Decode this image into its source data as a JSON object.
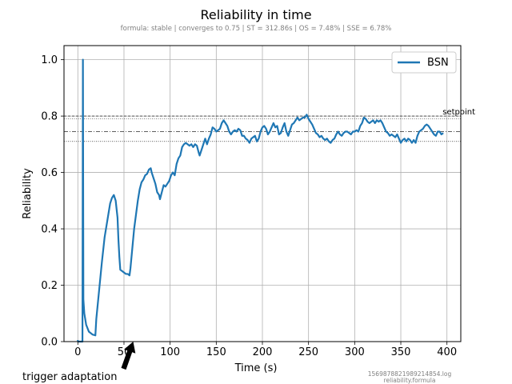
{
  "chart_data": {
    "type": "line",
    "title": "Reliability in time",
    "subtitle": "formula: stable | converges to 0.75 | ST = 312.86s | OS = 7.48% | SSE = 6.78%",
    "xlabel": "Time (s)",
    "ylabel": "Reliability",
    "xlim": [
      -15,
      415
    ],
    "ylim": [
      0.0,
      1.05
    ],
    "x_ticks": [
      0,
      50,
      100,
      150,
      200,
      250,
      300,
      350,
      400
    ],
    "y_ticks": [
      0.0,
      0.2,
      0.4,
      0.6,
      0.8,
      1.0
    ],
    "x_tick_labels": [
      "0",
      "50",
      "100",
      "150",
      "200",
      "250",
      "300",
      "350",
      "400"
    ],
    "y_tick_labels": [
      "0.0",
      "0.2",
      "0.4",
      "0.6",
      "0.8",
      "1.0"
    ],
    "grid": true,
    "legend_position": "top-right",
    "series": [
      {
        "name": "BSN",
        "color": "#1f77b4",
        "points": [
          [
            0,
            0.0
          ],
          [
            5,
            0.0
          ],
          [
            5.5,
            1.0
          ],
          [
            6,
            0.15
          ],
          [
            7,
            0.1
          ],
          [
            9,
            0.06
          ],
          [
            12,
            0.035
          ],
          [
            16,
            0.025
          ],
          [
            19,
            0.022
          ],
          [
            20,
            0.08
          ],
          [
            23,
            0.18
          ],
          [
            26,
            0.28
          ],
          [
            29,
            0.37
          ],
          [
            32,
            0.43
          ],
          [
            35,
            0.49
          ],
          [
            37,
            0.51
          ],
          [
            39,
            0.52
          ],
          [
            41,
            0.5
          ],
          [
            43,
            0.44
          ],
          [
            44,
            0.36
          ],
          [
            45,
            0.3
          ],
          [
            46,
            0.255
          ],
          [
            48,
            0.25
          ],
          [
            50,
            0.245
          ],
          [
            52,
            0.24
          ],
          [
            54,
            0.24
          ],
          [
            56,
            0.235
          ],
          [
            57,
            0.26
          ],
          [
            59,
            0.33
          ],
          [
            61,
            0.4
          ],
          [
            63,
            0.45
          ],
          [
            65,
            0.5
          ],
          [
            67,
            0.54
          ],
          [
            69,
            0.565
          ],
          [
            71,
            0.575
          ],
          [
            73,
            0.59
          ],
          [
            75,
            0.595
          ],
          [
            77,
            0.61
          ],
          [
            79,
            0.615
          ],
          [
            80,
            0.6
          ],
          [
            82,
            0.58
          ],
          [
            84,
            0.56
          ],
          [
            86,
            0.53
          ],
          [
            88,
            0.52
          ],
          [
            89,
            0.505
          ],
          [
            91,
            0.53
          ],
          [
            93,
            0.555
          ],
          [
            95,
            0.55
          ],
          [
            97,
            0.56
          ],
          [
            99,
            0.57
          ],
          [
            101,
            0.59
          ],
          [
            103,
            0.6
          ],
          [
            105,
            0.59
          ],
          [
            107,
            0.63
          ],
          [
            109,
            0.65
          ],
          [
            111,
            0.66
          ],
          [
            113,
            0.69
          ],
          [
            115,
            0.7
          ],
          [
            117,
            0.705
          ],
          [
            119,
            0.7
          ],
          [
            121,
            0.695
          ],
          [
            123,
            0.7
          ],
          [
            125,
            0.69
          ],
          [
            127,
            0.7
          ],
          [
            129,
            0.695
          ],
          [
            131,
            0.67
          ],
          [
            132,
            0.66
          ],
          [
            134,
            0.68
          ],
          [
            136,
            0.7
          ],
          [
            138,
            0.72
          ],
          [
            140,
            0.7
          ],
          [
            142,
            0.72
          ],
          [
            144,
            0.735
          ],
          [
            146,
            0.76
          ],
          [
            148,
            0.755
          ],
          [
            150,
            0.745
          ],
          [
            152,
            0.75
          ],
          [
            154,
            0.755
          ],
          [
            156,
            0.775
          ],
          [
            158,
            0.785
          ],
          [
            160,
            0.775
          ],
          [
            162,
            0.765
          ],
          [
            164,
            0.745
          ],
          [
            166,
            0.735
          ],
          [
            168,
            0.745
          ],
          [
            170,
            0.75
          ],
          [
            172,
            0.745
          ],
          [
            174,
            0.755
          ],
          [
            176,
            0.75
          ],
          [
            178,
            0.73
          ],
          [
            180,
            0.73
          ],
          [
            182,
            0.72
          ],
          [
            184,
            0.715
          ],
          [
            186,
            0.705
          ],
          [
            188,
            0.72
          ],
          [
            190,
            0.725
          ],
          [
            192,
            0.73
          ],
          [
            194,
            0.71
          ],
          [
            196,
            0.72
          ],
          [
            198,
            0.745
          ],
          [
            200,
            0.76
          ],
          [
            202,
            0.765
          ],
          [
            204,
            0.755
          ],
          [
            206,
            0.735
          ],
          [
            208,
            0.745
          ],
          [
            210,
            0.76
          ],
          [
            212,
            0.775
          ],
          [
            214,
            0.76
          ],
          [
            216,
            0.765
          ],
          [
            218,
            0.735
          ],
          [
            220,
            0.74
          ],
          [
            222,
            0.76
          ],
          [
            224,
            0.775
          ],
          [
            226,
            0.745
          ],
          [
            228,
            0.73
          ],
          [
            230,
            0.75
          ],
          [
            232,
            0.77
          ],
          [
            234,
            0.775
          ],
          [
            236,
            0.785
          ],
          [
            238,
            0.795
          ],
          [
            240,
            0.785
          ],
          [
            242,
            0.79
          ],
          [
            244,
            0.795
          ],
          [
            246,
            0.795
          ],
          [
            248,
            0.805
          ],
          [
            250,
            0.79
          ],
          [
            252,
            0.78
          ],
          [
            254,
            0.77
          ],
          [
            256,
            0.755
          ],
          [
            258,
            0.74
          ],
          [
            260,
            0.735
          ],
          [
            262,
            0.725
          ],
          [
            264,
            0.73
          ],
          [
            266,
            0.72
          ],
          [
            268,
            0.715
          ],
          [
            270,
            0.72
          ],
          [
            272,
            0.71
          ],
          [
            274,
            0.705
          ],
          [
            276,
            0.715
          ],
          [
            278,
            0.72
          ],
          [
            280,
            0.735
          ],
          [
            282,
            0.745
          ],
          [
            284,
            0.735
          ],
          [
            286,
            0.73
          ],
          [
            288,
            0.74
          ],
          [
            290,
            0.745
          ],
          [
            292,
            0.745
          ],
          [
            294,
            0.74
          ],
          [
            296,
            0.735
          ],
          [
            298,
            0.745
          ],
          [
            300,
            0.745
          ],
          [
            302,
            0.75
          ],
          [
            304,
            0.745
          ],
          [
            306,
            0.765
          ],
          [
            308,
            0.775
          ],
          [
            310,
            0.795
          ],
          [
            312,
            0.79
          ],
          [
            314,
            0.78
          ],
          [
            316,
            0.775
          ],
          [
            318,
            0.78
          ],
          [
            320,
            0.785
          ],
          [
            322,
            0.775
          ],
          [
            324,
            0.785
          ],
          [
            326,
            0.78
          ],
          [
            328,
            0.785
          ],
          [
            330,
            0.775
          ],
          [
            332,
            0.76
          ],
          [
            334,
            0.745
          ],
          [
            336,
            0.74
          ],
          [
            338,
            0.73
          ],
          [
            340,
            0.735
          ],
          [
            342,
            0.73
          ],
          [
            344,
            0.725
          ],
          [
            346,
            0.735
          ],
          [
            348,
            0.72
          ],
          [
            350,
            0.705
          ],
          [
            352,
            0.715
          ],
          [
            354,
            0.72
          ],
          [
            356,
            0.71
          ],
          [
            358,
            0.72
          ],
          [
            360,
            0.715
          ],
          [
            362,
            0.705
          ],
          [
            364,
            0.715
          ],
          [
            366,
            0.705
          ],
          [
            368,
            0.73
          ],
          [
            370,
            0.745
          ],
          [
            372,
            0.75
          ],
          [
            374,
            0.755
          ],
          [
            376,
            0.765
          ],
          [
            378,
            0.77
          ],
          [
            380,
            0.765
          ],
          [
            382,
            0.755
          ],
          [
            384,
            0.745
          ],
          [
            386,
            0.735
          ],
          [
            388,
            0.73
          ],
          [
            390,
            0.745
          ],
          [
            392,
            0.745
          ],
          [
            394,
            0.735
          ],
          [
            396,
            0.74
          ]
        ]
      }
    ],
    "reference_lines": [
      {
        "y": 0.8,
        "style": "dashed",
        "label": "setpoint"
      },
      {
        "y": 0.79,
        "style": "dotted",
        "label": ""
      },
      {
        "y": 0.745,
        "style": "dashdot",
        "label": ""
      },
      {
        "y": 0.71,
        "style": "dotted",
        "label": ""
      }
    ],
    "start_marker_x": 0,
    "annotation": {
      "text": "trigger adaptation",
      "arrow_target_x": 60,
      "arrow_target_y": 0.0
    },
    "footer": {
      "log_file": "1569878821989214854.log",
      "source": "reliability.formula"
    }
  }
}
